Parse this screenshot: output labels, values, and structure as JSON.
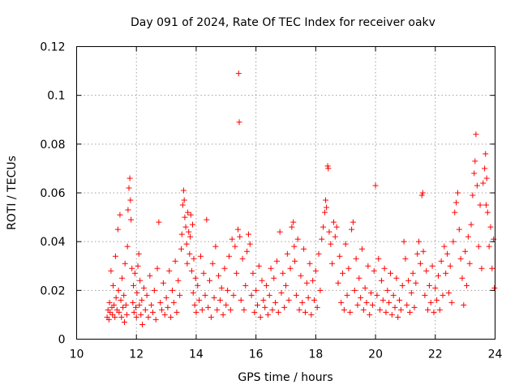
{
  "chart_data": {
    "type": "scatter",
    "title": "Day 091 of 2024, Rate Of TEC Index for receiver oakv",
    "xlabel": "GPS time / hours",
    "ylabel": "ROTI / TECUs",
    "xlim": [
      10,
      24
    ],
    "ylim": [
      0,
      0.12
    ],
    "x_ticks": [
      10,
      12,
      14,
      16,
      18,
      20,
      22,
      24
    ],
    "x_tick_labels": [
      "10",
      "12",
      "14",
      "16",
      "18",
      "20",
      "22",
      "24"
    ],
    "y_ticks": [
      0,
      0.02,
      0.04,
      0.06,
      0.08,
      0.1,
      0.12
    ],
    "y_tick_labels": [
      "0",
      "0.02",
      "0.04",
      "0.06",
      "0.08",
      "0.1",
      "0.12"
    ],
    "grid": true,
    "marker": "+",
    "color": "#ff0000",
    "series": [
      {
        "name": "ROTI",
        "points": [
          [
            11.02,
            0.009
          ],
          [
            11.05,
            0.012
          ],
          [
            11.08,
            0.008
          ],
          [
            11.1,
            0.015
          ],
          [
            11.12,
            0.011
          ],
          [
            11.15,
            0.028
          ],
          [
            11.18,
            0.013
          ],
          [
            11.2,
            0.01
          ],
          [
            11.22,
            0.022
          ],
          [
            11.25,
            0.014
          ],
          [
            11.28,
            0.009
          ],
          [
            11.3,
            0.034
          ],
          [
            11.32,
            0.017
          ],
          [
            11.35,
            0.012
          ],
          [
            11.38,
            0.045
          ],
          [
            11.4,
            0.02
          ],
          [
            11.42,
            0.011
          ],
          [
            11.45,
            0.051
          ],
          [
            11.48,
            0.016
          ],
          [
            11.5,
            0.009
          ],
          [
            11.52,
            0.025
          ],
          [
            11.55,
            0.013
          ],
          [
            11.58,
            0.018
          ],
          [
            11.6,
            0.007
          ],
          [
            11.62,
            0.031
          ],
          [
            11.65,
            0.014
          ],
          [
            11.68,
            0.01
          ],
          [
            11.7,
            0.038
          ],
          [
            11.72,
            0.053
          ],
          [
            11.75,
            0.062
          ],
          [
            11.78,
            0.066
          ],
          [
            11.8,
            0.057
          ],
          [
            11.82,
            0.049
          ],
          [
            11.85,
            0.029
          ],
          [
            11.88,
            0.015
          ],
          [
            11.9,
            0.022
          ],
          [
            11.92,
            0.011
          ],
          [
            11.95,
            0.027
          ],
          [
            11.98,
            0.013
          ],
          [
            12.0,
            0.009
          ],
          [
            12.02,
            0.019
          ],
          [
            12.05,
            0.03
          ],
          [
            12.08,
            0.035
          ],
          [
            12.1,
            0.014
          ],
          [
            12.12,
            0.024
          ],
          [
            12.15,
            0.01
          ],
          [
            12.18,
            0.016
          ],
          [
            12.2,
            0.006
          ],
          [
            12.25,
            0.021
          ],
          [
            12.3,
            0.012
          ],
          [
            12.35,
            0.018
          ],
          [
            12.4,
            0.009
          ],
          [
            12.45,
            0.026
          ],
          [
            12.5,
            0.014
          ],
          [
            12.55,
            0.011
          ],
          [
            12.6,
            0.02
          ],
          [
            12.65,
            0.008
          ],
          [
            12.7,
            0.029
          ],
          [
            12.75,
            0.048
          ],
          [
            12.8,
            0.015
          ],
          [
            12.85,
            0.012
          ],
          [
            12.9,
            0.023
          ],
          [
            12.95,
            0.01
          ],
          [
            13.0,
            0.017
          ],
          [
            13.05,
            0.013
          ],
          [
            13.1,
            0.028
          ],
          [
            13.15,
            0.009
          ],
          [
            13.2,
            0.02
          ],
          [
            13.25,
            0.015
          ],
          [
            13.3,
            0.032
          ],
          [
            13.35,
            0.011
          ],
          [
            13.4,
            0.024
          ],
          [
            13.45,
            0.018
          ],
          [
            13.5,
            0.037
          ],
          [
            13.52,
            0.043
          ],
          [
            13.55,
            0.055
          ],
          [
            13.58,
            0.061
          ],
          [
            13.6,
            0.057
          ],
          [
            13.62,
            0.05
          ],
          [
            13.65,
            0.046
          ],
          [
            13.68,
            0.039
          ],
          [
            13.7,
            0.031
          ],
          [
            13.72,
            0.052
          ],
          [
            13.75,
            0.044
          ],
          [
            13.78,
            0.035
          ],
          [
            13.8,
            0.042
          ],
          [
            13.82,
            0.051
          ],
          [
            13.85,
            0.028
          ],
          [
            13.88,
            0.047
          ],
          [
            13.9,
            0.019
          ],
          [
            13.92,
            0.033
          ],
          [
            13.95,
            0.014
          ],
          [
            13.98,
            0.025
          ],
          [
            14.0,
            0.011
          ],
          [
            14.05,
            0.022
          ],
          [
            14.1,
            0.016
          ],
          [
            14.15,
            0.034
          ],
          [
            14.2,
            0.012
          ],
          [
            14.25,
            0.027
          ],
          [
            14.3,
            0.018
          ],
          [
            14.35,
            0.049
          ],
          [
            14.4,
            0.013
          ],
          [
            14.45,
            0.024
          ],
          [
            14.5,
            0.009
          ],
          [
            14.55,
            0.031
          ],
          [
            14.6,
            0.017
          ],
          [
            14.65,
            0.038
          ],
          [
            14.7,
            0.012
          ],
          [
            14.75,
            0.026
          ],
          [
            14.8,
            0.016
          ],
          [
            14.85,
            0.021
          ],
          [
            14.9,
            0.01
          ],
          [
            14.95,
            0.029
          ],
          [
            15.0,
            0.014
          ],
          [
            15.05,
            0.02
          ],
          [
            15.1,
            0.034
          ],
          [
            15.15,
            0.012
          ],
          [
            15.2,
            0.041
          ],
          [
            15.25,
            0.018
          ],
          [
            15.3,
            0.038
          ],
          [
            15.35,
            0.027
          ],
          [
            15.4,
            0.045
          ],
          [
            15.42,
            0.109
          ],
          [
            15.44,
            0.089
          ],
          [
            15.46,
            0.042
          ],
          [
            15.5,
            0.016
          ],
          [
            15.55,
            0.033
          ],
          [
            15.6,
            0.012
          ],
          [
            15.65,
            0.022
          ],
          [
            15.7,
            0.036
          ],
          [
            15.75,
            0.043
          ],
          [
            15.8,
            0.039
          ],
          [
            15.85,
            0.018
          ],
          [
            15.9,
            0.027
          ],
          [
            15.95,
            0.011
          ],
          [
            16.0,
            0.02
          ],
          [
            16.05,
            0.014
          ],
          [
            16.1,
            0.03
          ],
          [
            16.15,
            0.009
          ],
          [
            16.2,
            0.024
          ],
          [
            16.25,
            0.016
          ],
          [
            16.3,
            0.013
          ],
          [
            16.35,
            0.022
          ],
          [
            16.4,
            0.01
          ],
          [
            16.45,
            0.018
          ],
          [
            16.5,
            0.029
          ],
          [
            16.55,
            0.012
          ],
          [
            16.6,
            0.025
          ],
          [
            16.65,
            0.015
          ],
          [
            16.7,
            0.032
          ],
          [
            16.75,
            0.011
          ],
          [
            16.8,
            0.044
          ],
          [
            16.85,
            0.019
          ],
          [
            16.9,
            0.027
          ],
          [
            16.95,
            0.013
          ],
          [
            17.0,
            0.022
          ],
          [
            17.05,
            0.035
          ],
          [
            17.1,
            0.016
          ],
          [
            17.15,
            0.029
          ],
          [
            17.2,
            0.046
          ],
          [
            17.25,
            0.048
          ],
          [
            17.28,
            0.038
          ],
          [
            17.3,
            0.032
          ],
          [
            17.35,
            0.018
          ],
          [
            17.4,
            0.041
          ],
          [
            17.45,
            0.012
          ],
          [
            17.5,
            0.026
          ],
          [
            17.55,
            0.015
          ],
          [
            17.6,
            0.037
          ],
          [
            17.65,
            0.011
          ],
          [
            17.7,
            0.023
          ],
          [
            17.75,
            0.017
          ],
          [
            17.8,
            0.031
          ],
          [
            17.85,
            0.01
          ],
          [
            17.9,
            0.024
          ],
          [
            17.95,
            0.016
          ],
          [
            18.0,
            0.028
          ],
          [
            18.05,
            0.013
          ],
          [
            18.1,
            0.035
          ],
          [
            18.15,
            0.02
          ],
          [
            18.2,
            0.041
          ],
          [
            18.25,
            0.046
          ],
          [
            18.3,
            0.052
          ],
          [
            18.33,
            0.057
          ],
          [
            18.36,
            0.054
          ],
          [
            18.4,
            0.071
          ],
          [
            18.42,
            0.07
          ],
          [
            18.45,
            0.044
          ],
          [
            18.5,
            0.039
          ],
          [
            18.55,
            0.031
          ],
          [
            18.6,
            0.048
          ],
          [
            18.65,
            0.042
          ],
          [
            18.7,
            0.046
          ],
          [
            18.75,
            0.023
          ],
          [
            18.8,
            0.034
          ],
          [
            18.85,
            0.015
          ],
          [
            18.9,
            0.027
          ],
          [
            18.95,
            0.012
          ],
          [
            19.0,
            0.039
          ],
          [
            19.05,
            0.018
          ],
          [
            19.1,
            0.029
          ],
          [
            19.15,
            0.011
          ],
          [
            19.2,
            0.045
          ],
          [
            19.25,
            0.048
          ],
          [
            19.3,
            0.02
          ],
          [
            19.35,
            0.033
          ],
          [
            19.4,
            0.014
          ],
          [
            19.45,
            0.025
          ],
          [
            19.5,
            0.017
          ],
          [
            19.55,
            0.037
          ],
          [
            19.6,
            0.012
          ],
          [
            19.65,
            0.021
          ],
          [
            19.7,
            0.015
          ],
          [
            19.75,
            0.03
          ],
          [
            19.8,
            0.01
          ],
          [
            19.85,
            0.019
          ],
          [
            19.9,
            0.014
          ],
          [
            19.95,
            0.028
          ],
          [
            20.0,
            0.063
          ],
          [
            20.05,
            0.018
          ],
          [
            20.1,
            0.033
          ],
          [
            20.15,
            0.012
          ],
          [
            20.2,
            0.024
          ],
          [
            20.25,
            0.016
          ],
          [
            20.3,
            0.029
          ],
          [
            20.35,
            0.011
          ],
          [
            20.4,
            0.02
          ],
          [
            20.45,
            0.015
          ],
          [
            20.5,
            0.027
          ],
          [
            20.55,
            0.01
          ],
          [
            20.6,
            0.018
          ],
          [
            20.65,
            0.013
          ],
          [
            20.7,
            0.025
          ],
          [
            20.75,
            0.009
          ],
          [
            20.8,
            0.016
          ],
          [
            20.85,
            0.012
          ],
          [
            20.9,
            0.022
          ],
          [
            20.95,
            0.04
          ],
          [
            21.0,
            0.033
          ],
          [
            21.05,
            0.014
          ],
          [
            21.1,
            0.024
          ],
          [
            21.15,
            0.011
          ],
          [
            21.2,
            0.019
          ],
          [
            21.25,
            0.027
          ],
          [
            21.3,
            0.013
          ],
          [
            21.35,
            0.023
          ],
          [
            21.4,
            0.035
          ],
          [
            21.45,
            0.04
          ],
          [
            21.5,
            0.031
          ],
          [
            21.55,
            0.059
          ],
          [
            21.58,
            0.06
          ],
          [
            21.6,
            0.036
          ],
          [
            21.65,
            0.018
          ],
          [
            21.7,
            0.028
          ],
          [
            21.75,
            0.012
          ],
          [
            21.8,
            0.022
          ],
          [
            21.85,
            0.015
          ],
          [
            21.9,
            0.03
          ],
          [
            21.95,
            0.011
          ],
          [
            22.0,
            0.021
          ],
          [
            22.05,
            0.016
          ],
          [
            22.1,
            0.026
          ],
          [
            22.15,
            0.012
          ],
          [
            22.2,
            0.032
          ],
          [
            22.25,
            0.018
          ],
          [
            22.3,
            0.038
          ],
          [
            22.35,
            0.027
          ],
          [
            22.4,
            0.035
          ],
          [
            22.45,
            0.019
          ],
          [
            22.5,
            0.03
          ],
          [
            22.55,
            0.015
          ],
          [
            22.6,
            0.04
          ],
          [
            22.65,
            0.052
          ],
          [
            22.7,
            0.056
          ],
          [
            22.75,
            0.06
          ],
          [
            22.8,
            0.045
          ],
          [
            22.85,
            0.033
          ],
          [
            22.9,
            0.025
          ],
          [
            22.95,
            0.014
          ],
          [
            23.0,
            0.036
          ],
          [
            23.05,
            0.022
          ],
          [
            23.1,
            0.042
          ],
          [
            23.15,
            0.031
          ],
          [
            23.2,
            0.047
          ],
          [
            23.25,
            0.059
          ],
          [
            23.3,
            0.068
          ],
          [
            23.33,
            0.073
          ],
          [
            23.36,
            0.084
          ],
          [
            23.4,
            0.063
          ],
          [
            23.45,
            0.038
          ],
          [
            23.5,
            0.055
          ],
          [
            23.55,
            0.029
          ],
          [
            23.6,
            0.064
          ],
          [
            23.65,
            0.07
          ],
          [
            23.68,
            0.076
          ],
          [
            23.7,
            0.055
          ],
          [
            23.72,
            0.066
          ],
          [
            23.75,
            0.052
          ],
          [
            23.8,
            0.038
          ],
          [
            23.85,
            0.046
          ],
          [
            23.9,
            0.029
          ],
          [
            23.95,
            0.041
          ],
          [
            23.98,
            0.021
          ]
        ]
      }
    ]
  }
}
